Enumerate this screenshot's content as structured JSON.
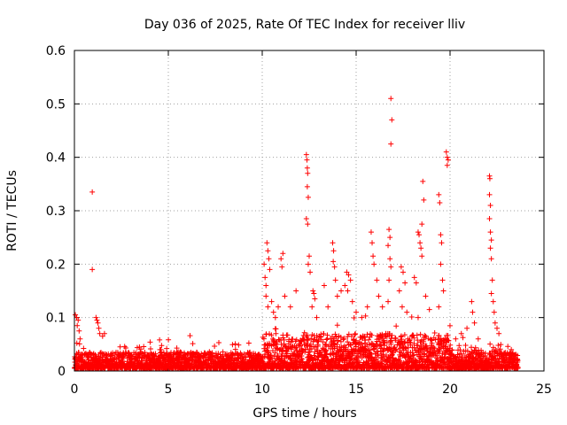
{
  "chart_data": {
    "type": "scatter",
    "title": "Day 036 of 2025, Rate Of TEC Index for receiver lliv",
    "xlabel": "GPS time / hours",
    "ylabel": "ROTI / TECUs",
    "xlim": [
      0,
      25
    ],
    "ylim": [
      0,
      0.6
    ],
    "xticks": [
      0,
      5,
      10,
      15,
      20,
      25
    ],
    "yticks": [
      0,
      0.1,
      0.2,
      0.3,
      0.4,
      0.5,
      0.6
    ],
    "xtick_labels": [
      "0",
      "5",
      "10",
      "15",
      "20",
      "25"
    ],
    "ytick_labels": [
      "0",
      "0.1",
      "0.2",
      "0.3",
      "0.4",
      "0.5",
      "0.6"
    ],
    "grid": true,
    "marker": "+",
    "series_color": "#ff0000",
    "series": [
      {
        "name": "ROTI",
        "points": [
          [
            0.05,
            0.105
          ],
          [
            0.12,
            0.1
          ],
          [
            0.2,
            0.095
          ],
          [
            0.15,
            0.085
          ],
          [
            0.25,
            0.075
          ],
          [
            0.3,
            0.06
          ],
          [
            0.95,
            0.335
          ],
          [
            0.95,
            0.19
          ],
          [
            1.15,
            0.1
          ],
          [
            1.2,
            0.095
          ],
          [
            1.25,
            0.09
          ],
          [
            1.3,
            0.08
          ],
          [
            1.35,
            0.07
          ],
          [
            1.5,
            0.065
          ],
          [
            1.6,
            0.07
          ],
          [
            10.1,
            0.2
          ],
          [
            10.15,
            0.175
          ],
          [
            10.2,
            0.16
          ],
          [
            10.25,
            0.24
          ],
          [
            10.3,
            0.225
          ],
          [
            10.35,
            0.21
          ],
          [
            10.4,
            0.19
          ],
          [
            10.2,
            0.14
          ],
          [
            10.3,
            0.12
          ],
          [
            10.5,
            0.13
          ],
          [
            10.6,
            0.11
          ],
          [
            10.7,
            0.1
          ],
          [
            10.85,
            0.12
          ],
          [
            11.0,
            0.21
          ],
          [
            11.05,
            0.195
          ],
          [
            11.1,
            0.22
          ],
          [
            11.2,
            0.14
          ],
          [
            11.5,
            0.12
          ],
          [
            11.8,
            0.15
          ],
          [
            12.35,
            0.405
          ],
          [
            12.38,
            0.395
          ],
          [
            12.4,
            0.38
          ],
          [
            12.42,
            0.37
          ],
          [
            12.4,
            0.345
          ],
          [
            12.45,
            0.325
          ],
          [
            12.35,
            0.285
          ],
          [
            12.42,
            0.275
          ],
          [
            12.5,
            0.215
          ],
          [
            12.45,
            0.2
          ],
          [
            12.55,
            0.185
          ],
          [
            12.7,
            0.15
          ],
          [
            12.75,
            0.145
          ],
          [
            12.8,
            0.135
          ],
          [
            12.65,
            0.12
          ],
          [
            12.9,
            0.1
          ],
          [
            13.3,
            0.16
          ],
          [
            13.5,
            0.12
          ],
          [
            13.75,
            0.24
          ],
          [
            13.8,
            0.225
          ],
          [
            13.78,
            0.205
          ],
          [
            13.85,
            0.195
          ],
          [
            13.9,
            0.17
          ],
          [
            14.0,
            0.14
          ],
          [
            14.2,
            0.15
          ],
          [
            14.4,
            0.16
          ],
          [
            14.5,
            0.185
          ],
          [
            14.6,
            0.18
          ],
          [
            14.7,
            0.17
          ],
          [
            14.55,
            0.15
          ],
          [
            14.8,
            0.13
          ],
          [
            15.0,
            0.11
          ],
          [
            15.3,
            0.1
          ],
          [
            15.6,
            0.12
          ],
          [
            15.8,
            0.26
          ],
          [
            15.85,
            0.24
          ],
          [
            15.9,
            0.215
          ],
          [
            15.95,
            0.2
          ],
          [
            16.1,
            0.17
          ],
          [
            16.2,
            0.14
          ],
          [
            16.4,
            0.12
          ],
          [
            16.75,
            0.265
          ],
          [
            16.8,
            0.25
          ],
          [
            16.7,
            0.235
          ],
          [
            16.8,
            0.21
          ],
          [
            16.85,
            0.195
          ],
          [
            16.75,
            0.17
          ],
          [
            16.7,
            0.13
          ],
          [
            16.85,
            0.51
          ],
          [
            16.9,
            0.47
          ],
          [
            16.85,
            0.425
          ],
          [
            17.4,
            0.195
          ],
          [
            17.5,
            0.185
          ],
          [
            17.6,
            0.165
          ],
          [
            17.3,
            0.15
          ],
          [
            17.45,
            0.12
          ],
          [
            17.7,
            0.11
          ],
          [
            18.1,
            0.175
          ],
          [
            18.2,
            0.165
          ],
          [
            18.3,
            0.26
          ],
          [
            18.35,
            0.255
          ],
          [
            18.4,
            0.24
          ],
          [
            18.45,
            0.23
          ],
          [
            18.5,
            0.215
          ],
          [
            18.55,
            0.355
          ],
          [
            18.6,
            0.32
          ],
          [
            18.5,
            0.275
          ],
          [
            18.3,
            0.1
          ],
          [
            18.7,
            0.14
          ],
          [
            18.9,
            0.115
          ],
          [
            19.4,
            0.33
          ],
          [
            19.45,
            0.315
          ],
          [
            19.5,
            0.255
          ],
          [
            19.55,
            0.24
          ],
          [
            19.5,
            0.2
          ],
          [
            19.6,
            0.17
          ],
          [
            19.65,
            0.15
          ],
          [
            19.4,
            0.12
          ],
          [
            19.8,
            0.41
          ],
          [
            19.85,
            0.4
          ],
          [
            19.9,
            0.395
          ],
          [
            19.85,
            0.385
          ],
          [
            20.3,
            0.06
          ],
          [
            20.6,
            0.07
          ],
          [
            20.9,
            0.08
          ],
          [
            21.15,
            0.13
          ],
          [
            21.2,
            0.11
          ],
          [
            21.3,
            0.09
          ],
          [
            21.5,
            0.06
          ],
          [
            22.1,
            0.365
          ],
          [
            22.12,
            0.36
          ],
          [
            22.1,
            0.33
          ],
          [
            22.15,
            0.31
          ],
          [
            22.1,
            0.285
          ],
          [
            22.15,
            0.26
          ],
          [
            22.2,
            0.245
          ],
          [
            22.15,
            0.23
          ],
          [
            22.2,
            0.21
          ],
          [
            22.25,
            0.17
          ],
          [
            22.2,
            0.145
          ],
          [
            22.3,
            0.13
          ],
          [
            22.35,
            0.11
          ],
          [
            22.4,
            0.09
          ],
          [
            22.5,
            0.08
          ],
          [
            22.6,
            0.07
          ]
        ]
      }
    ],
    "baseline_band": {
      "description": "dense cluster of low ROTI values across the whole day",
      "x_range": [
        0,
        23.6
      ],
      "y_min": 0.005,
      "y_typical_max": 0.03
    }
  }
}
